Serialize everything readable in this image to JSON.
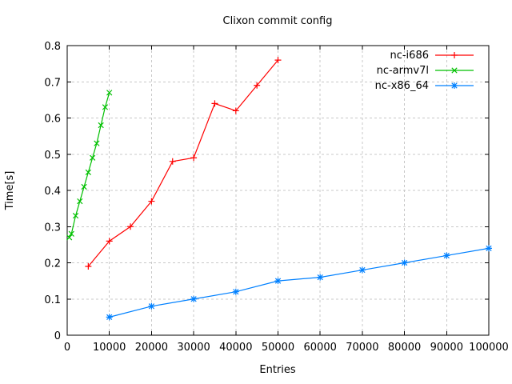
{
  "chart_data": {
    "type": "line",
    "title": "Clixon commit config",
    "xlabel": "Entries",
    "ylabel": "Time[s]",
    "xlim": [
      0,
      100000
    ],
    "ylim": [
      0,
      0.8
    ],
    "x_ticks": [
      0,
      10000,
      20000,
      30000,
      40000,
      50000,
      60000,
      70000,
      80000,
      90000,
      100000
    ],
    "y_ticks": [
      0,
      0.1,
      0.2,
      0.3,
      0.4,
      0.5,
      0.6,
      0.7,
      0.8
    ],
    "grid": true,
    "grid_style": "dashed",
    "legend_position": "top-right-inside",
    "background_color": "#ffffff",
    "grid_color": "#c8c8c8",
    "axis_color": "#000000",
    "text_color": "#000000",
    "series": [
      {
        "name": "nc-i686",
        "color": "#ff0000",
        "marker": "plus",
        "x": [
          5000,
          10000,
          15000,
          20000,
          25000,
          30000,
          35000,
          40000,
          45000,
          50000
        ],
        "y": [
          0.19,
          0.26,
          0.3,
          0.37,
          0.48,
          0.49,
          0.64,
          0.62,
          0.69,
          0.76
        ]
      },
      {
        "name": "nc-armv7l",
        "color": "#00c000",
        "marker": "cross",
        "x": [
          500,
          1000,
          2000,
          3000,
          4000,
          5000,
          6000,
          7000,
          8000,
          9000,
          10000
        ],
        "y": [
          0.27,
          0.28,
          0.33,
          0.37,
          0.41,
          0.45,
          0.49,
          0.53,
          0.58,
          0.63,
          0.67
        ]
      },
      {
        "name": "nc-x86_64",
        "color": "#0080ff",
        "marker": "asterisk",
        "x": [
          10000,
          20000,
          30000,
          40000,
          50000,
          60000,
          70000,
          80000,
          90000,
          100000
        ],
        "y": [
          0.05,
          0.08,
          0.1,
          0.12,
          0.15,
          0.16,
          0.18,
          0.2,
          0.22,
          0.24
        ]
      }
    ]
  }
}
